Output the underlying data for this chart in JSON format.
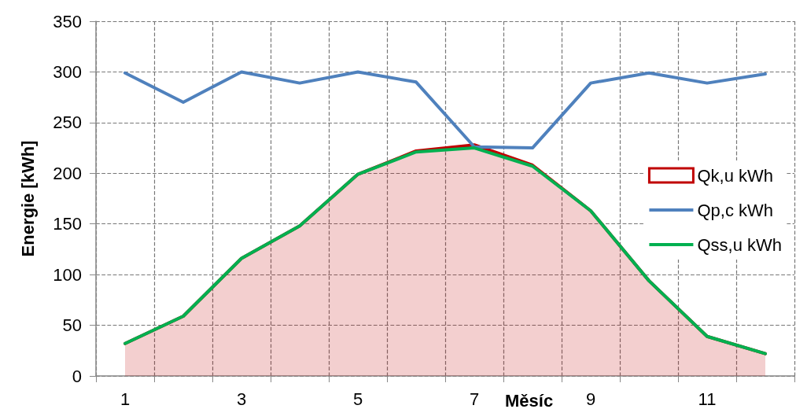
{
  "chart_data": {
    "type": "line",
    "ylabel": "Energie [kWh]",
    "xlabel": "Měsíc",
    "categories": [
      "1",
      null,
      "3",
      null,
      "5",
      null,
      "7",
      null,
      "9",
      null,
      "11",
      null
    ],
    "series": [
      {
        "name": "Qk,u kWh",
        "type": "area",
        "color": "#c00000",
        "values": [
          32,
          59,
          116,
          148,
          199,
          222,
          228,
          208,
          163,
          94,
          39,
          22
        ]
      },
      {
        "name": "Qp,c kWh",
        "color": "#4f81bd",
        "values": [
          299,
          270,
          300,
          289,
          300,
          290,
          226,
          225,
          289,
          299,
          289,
          298
        ]
      },
      {
        "name": "Qss,u kWh",
        "color": "#00b050",
        "values": [
          32,
          59,
          116,
          148,
          199,
          221,
          225,
          207,
          163,
          94,
          39,
          22
        ]
      }
    ],
    "ylim": [
      0,
      350
    ],
    "yticks": [
      0,
      50,
      100,
      150,
      200,
      250,
      300,
      350
    ],
    "grid": true,
    "legend": "right",
    "marker": "none",
    "line_style": "solid"
  }
}
